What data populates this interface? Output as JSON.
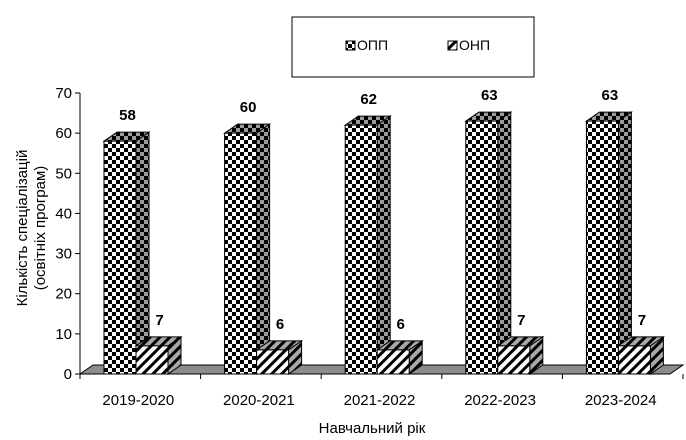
{
  "chart_data": {
    "type": "bar",
    "categories": [
      "2019-2020",
      "2020-2021",
      "2021-2022",
      "2022-2023",
      "2023-2024"
    ],
    "series": [
      {
        "name": "ОПП",
        "values": [
          58,
          60,
          62,
          63,
          63
        ],
        "pattern": "checker"
      },
      {
        "name": "ОНП",
        "values": [
          7,
          6,
          6,
          7,
          7
        ],
        "pattern": "diagonal"
      }
    ],
    "xlabel": "Навчальний рік",
    "ylabel_lines": [
      "Кількість спеціалізацій",
      "(освітніх  програм)"
    ],
    "ylim": [
      0,
      70
    ],
    "yticks": [
      0,
      10,
      20,
      30,
      40,
      50,
      60,
      70
    ],
    "grid": false,
    "legend_position": "top-center",
    "style": "3d-column"
  }
}
